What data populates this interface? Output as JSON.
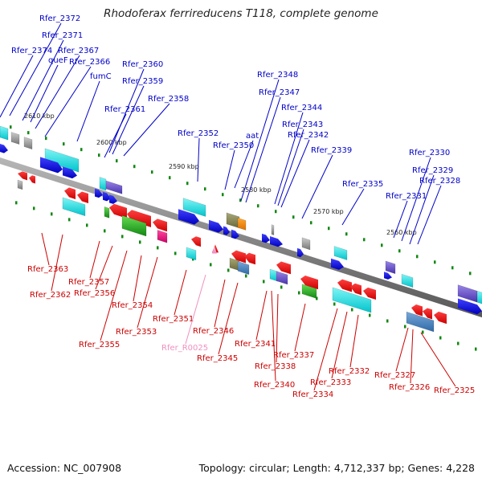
{
  "title": "Rhodoferax ferrireducens T118, complete genome",
  "footer": {
    "accession": "Accession: NC_007908",
    "summary": "Topology: circular; Length: 4,712,337 bp; Genes: 4,228"
  },
  "colors": {
    "forward_label": "#0000c8",
    "reverse_label": "#cc0000",
    "rna_label": "#f090c0",
    "backbone": "#8a8a8a",
    "tick": "#118811"
  },
  "ticks": [
    {
      "label": "2610 kbp",
      "bp": 2610000
    },
    {
      "label": "2600 kbp",
      "bp": 2600000
    },
    {
      "label": "2590 kbp",
      "bp": 2590000
    },
    {
      "label": "2580 kbp",
      "bp": 2580000
    },
    {
      "label": "2570 kbp",
      "bp": 2570000
    },
    {
      "label": "2560 kbp",
      "bp": 2560000
    }
  ],
  "forward_labels": [
    "Rfer_2372",
    "Rfer_2371",
    "Rfer_2374",
    "queF",
    "Rfer_2367",
    "Rfer_2366",
    "fumC",
    "Rfer_2360",
    "Rfer_2359",
    "Rfer_2361",
    "Rfer_2358",
    "Rfer_2352",
    "Rfer_2350",
    "aat",
    "Rfer_2348",
    "Rfer_2347",
    "Rfer_2344",
    "Rfer_2343",
    "Rfer_2342",
    "Rfer_2339",
    "Rfer_2335",
    "Rfer_2331",
    "Rfer_2330",
    "Rfer_2329",
    "Rfer_2328"
  ],
  "reverse_labels": [
    "Rfer_2363",
    "Rfer_2362",
    "Rfer_2357",
    "Rfer_2356",
    "Rfer_2354",
    "Rfer_2355",
    "Rfer_2353",
    "Rfer_2351",
    "Rfer_R0025",
    "Rfer_2346",
    "Rfer_2345",
    "Rfer_2341",
    "Rfer_2338",
    "Rfer_2340",
    "Rfer_2337",
    "Rfer_2334",
    "Rfer_2333",
    "Rfer_2332",
    "Rfer_2327",
    "Rfer_2326",
    "Rfer_2325"
  ]
}
